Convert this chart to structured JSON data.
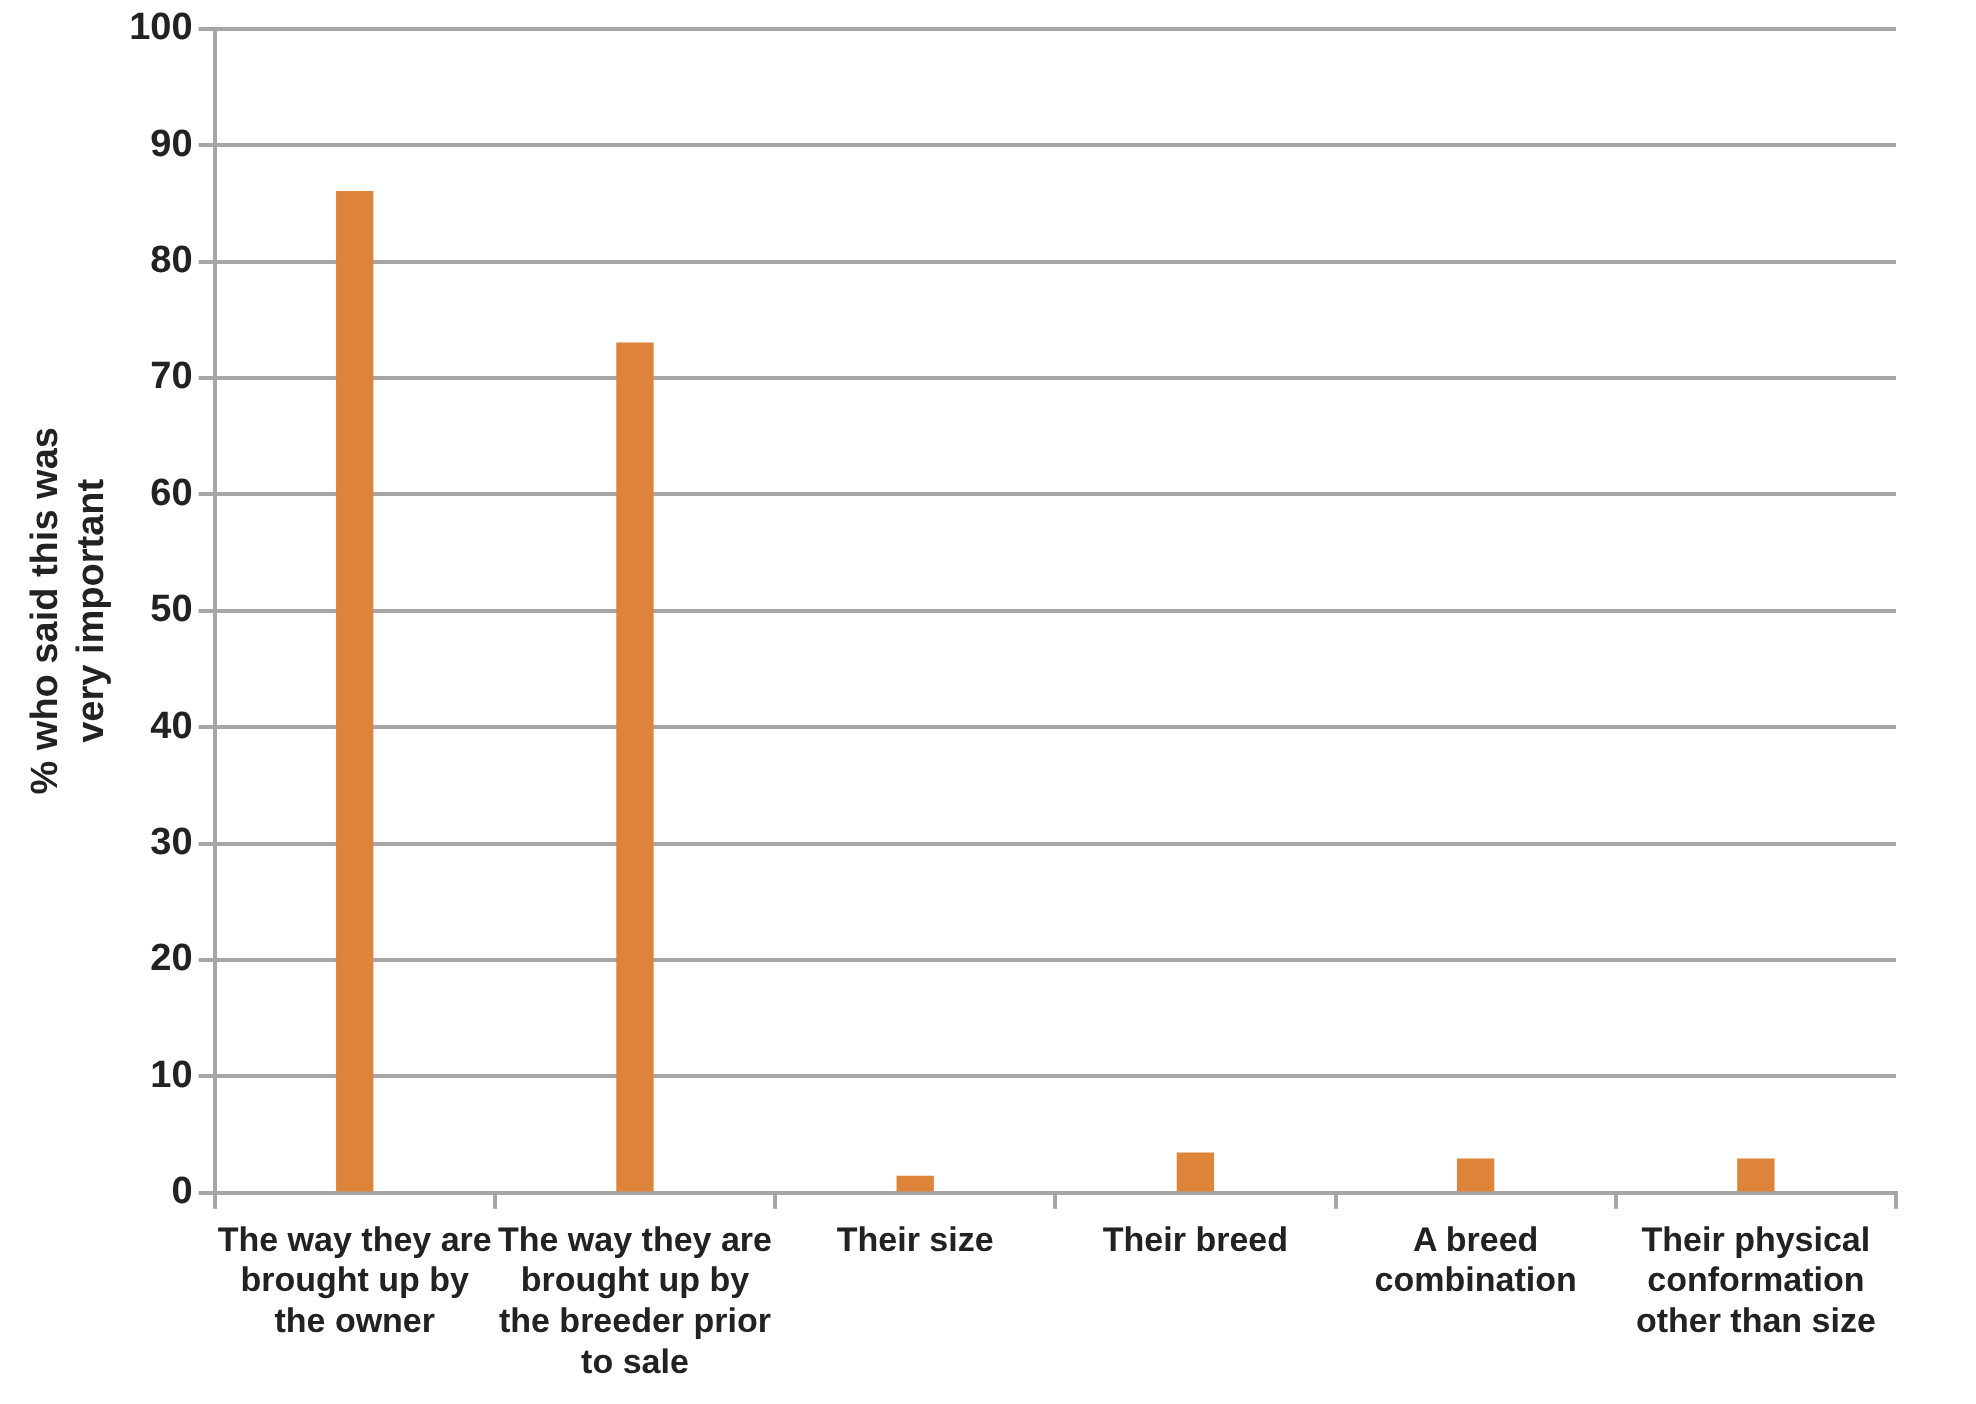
{
  "chart_data": {
    "type": "bar",
    "ylabel": "% who said this was very important",
    "categories": [
      "The way they are brought up by the owner",
      "The way they are brought up by the breeder prior to sale",
      "Their size",
      "Their breed",
      "A breed combination",
      "Their physical conformation other than size"
    ],
    "values": [
      86,
      73,
      1.4,
      3.4,
      2.9,
      2.9
    ],
    "color": "#dd843a",
    "ylim": [
      0,
      100
    ],
    "yticks": [
      0,
      10,
      20,
      30,
      40,
      50,
      60,
      70,
      80,
      90,
      100
    ],
    "grid": "y",
    "legend": false
  }
}
